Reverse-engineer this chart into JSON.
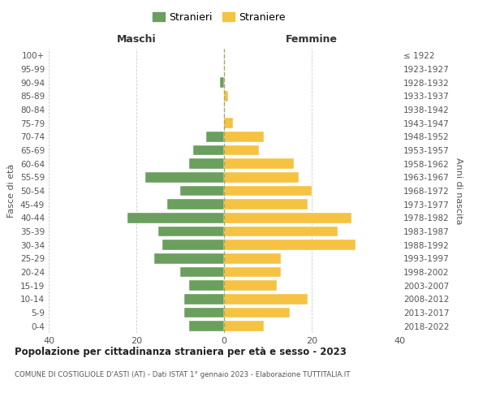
{
  "age_groups": [
    "0-4",
    "5-9",
    "10-14",
    "15-19",
    "20-24",
    "25-29",
    "30-34",
    "35-39",
    "40-44",
    "45-49",
    "50-54",
    "55-59",
    "60-64",
    "65-69",
    "70-74",
    "75-79",
    "80-84",
    "85-89",
    "90-94",
    "95-99",
    "100+"
  ],
  "birth_years": [
    "2018-2022",
    "2013-2017",
    "2008-2012",
    "2003-2007",
    "1998-2002",
    "1993-1997",
    "1988-1992",
    "1983-1987",
    "1978-1982",
    "1973-1977",
    "1968-1972",
    "1963-1967",
    "1958-1962",
    "1953-1957",
    "1948-1952",
    "1943-1947",
    "1938-1942",
    "1933-1937",
    "1928-1932",
    "1923-1927",
    "≤ 1922"
  ],
  "males": [
    8,
    9,
    9,
    8,
    10,
    16,
    14,
    15,
    22,
    13,
    10,
    18,
    8,
    7,
    4,
    0,
    0,
    0,
    1,
    0,
    0
  ],
  "females": [
    9,
    15,
    19,
    12,
    13,
    13,
    30,
    26,
    29,
    19,
    20,
    17,
    16,
    8,
    9,
    2,
    0,
    1,
    0,
    0,
    0
  ],
  "male_color": "#6a9f5e",
  "female_color": "#f5c242",
  "background_color": "#ffffff",
  "grid_color": "#cccccc",
  "title": "Popolazione per cittadinanza straniera per età e sesso - 2023",
  "subtitle": "COMUNE DI COSTIGLIOLE D'ASTI (AT) - Dati ISTAT 1° gennaio 2023 - Elaborazione TUTTITALIA.IT",
  "legend_male": "Stranieri",
  "legend_female": "Straniere",
  "xlabel_left": "Maschi",
  "xlabel_right": "Femmine",
  "ylabel_left": "Fasce di età",
  "ylabel_right": "Anni di nascita",
  "xlim": 40
}
